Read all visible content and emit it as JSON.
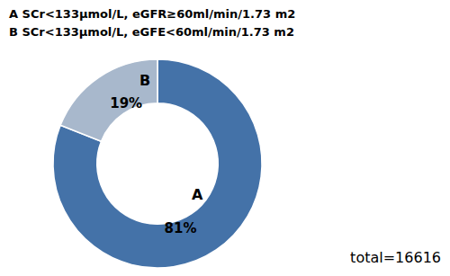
{
  "chart_data": {
    "type": "pie",
    "categories": [
      "A",
      "B"
    ],
    "values": [
      81,
      19
    ],
    "value_labels": [
      "81%",
      "19%"
    ],
    "colors": [
      "#4472a8",
      "#a8b8cc"
    ],
    "annotations": [
      "A   SCr<133μmol/L, eGFR≥60ml/min/1.73 m2",
      "B   SCr<133μmol/L, eGFE<60ml/min/1.73 m2",
      "total=16616"
    ]
  }
}
